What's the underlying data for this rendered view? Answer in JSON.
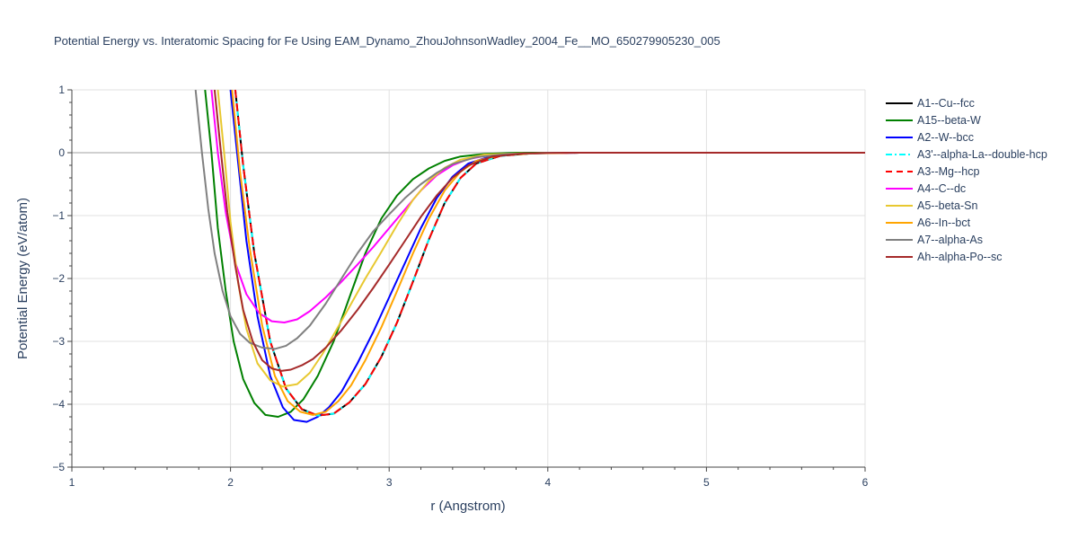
{
  "chart_data": {
    "type": "line",
    "title": "Potential Energy vs. Interatomic Spacing for Fe Using EAM_Dynamo_ZhouJohnsonWadley_2004_Fe__MO_650279905230_005",
    "xlabel": "r (Angstrom)",
    "ylabel": "Potential Energy (eV/atom)",
    "xlim": [
      1,
      6
    ],
    "ylim": [
      -5,
      1
    ],
    "xticks": [
      1,
      2,
      3,
      4,
      5,
      6
    ],
    "yticks": [
      1,
      0,
      -1,
      -2,
      -3,
      -4,
      -5
    ],
    "ytick_labels": [
      "1",
      "0",
      "−1",
      "−2",
      "−3",
      "−4",
      "−5"
    ],
    "grid": true,
    "legend_position": "right",
    "series": [
      {
        "name": "A1--Cu--fcc",
        "color": "#000000",
        "dash": "solid",
        "x": [
          2.03,
          2.08,
          2.15,
          2.25,
          2.35,
          2.45,
          2.55,
          2.65,
          2.75,
          2.85,
          2.95,
          3.05,
          3.15,
          3.25,
          3.35,
          3.45,
          3.55,
          3.7,
          3.9,
          4.2,
          5.0,
          6.0
        ],
        "y": [
          1.0,
          -0.2,
          -1.6,
          -3.0,
          -3.75,
          -4.08,
          -4.18,
          -4.15,
          -3.97,
          -3.68,
          -3.25,
          -2.7,
          -2.05,
          -1.38,
          -0.8,
          -0.4,
          -0.17,
          -0.05,
          -0.01,
          0,
          0,
          0
        ]
      },
      {
        "name": "A15--beta-W",
        "color": "#008000",
        "dash": "solid",
        "x": [
          1.84,
          1.88,
          1.92,
          1.97,
          2.02,
          2.08,
          2.15,
          2.22,
          2.3,
          2.38,
          2.46,
          2.55,
          2.65,
          2.75,
          2.85,
          2.95,
          3.05,
          3.15,
          3.25,
          3.35,
          3.45,
          3.6,
          3.8,
          4.1,
          5.0,
          6.0
        ],
        "y": [
          1.0,
          0.0,
          -1.2,
          -2.2,
          -3.0,
          -3.6,
          -3.98,
          -4.17,
          -4.2,
          -4.12,
          -3.92,
          -3.55,
          -3.0,
          -2.3,
          -1.6,
          -1.05,
          -0.68,
          -0.42,
          -0.25,
          -0.13,
          -0.06,
          -0.02,
          0,
          0,
          0,
          0
        ]
      },
      {
        "name": "A2--W--bcc",
        "color": "#0000ff",
        "dash": "solid",
        "x": [
          2.0,
          2.05,
          2.1,
          2.17,
          2.25,
          2.33,
          2.4,
          2.48,
          2.55,
          2.62,
          2.7,
          2.8,
          2.9,
          3.0,
          3.1,
          3.2,
          3.3,
          3.4,
          3.5,
          3.65,
          3.85,
          4.2,
          5.0,
          6.0
        ],
        "y": [
          1.0,
          -0.2,
          -1.4,
          -2.6,
          -3.55,
          -4.05,
          -4.25,
          -4.28,
          -4.2,
          -4.05,
          -3.8,
          -3.35,
          -2.85,
          -2.3,
          -1.75,
          -1.2,
          -0.72,
          -0.38,
          -0.17,
          -0.05,
          -0.01,
          0,
          0,
          0
        ]
      },
      {
        "name": "A3'--alpha-La--double-hcp",
        "color": "#00ffff",
        "dash": "dashdot",
        "x": [
          2.03,
          2.08,
          2.15,
          2.25,
          2.35,
          2.45,
          2.55,
          2.65,
          2.75,
          2.85,
          2.95,
          3.05,
          3.15,
          3.25,
          3.35,
          3.45,
          3.55,
          3.7,
          3.9,
          4.2,
          5.0,
          6.0
        ],
        "y": [
          1.0,
          -0.2,
          -1.6,
          -3.0,
          -3.75,
          -4.08,
          -4.18,
          -4.15,
          -3.97,
          -3.68,
          -3.25,
          -2.7,
          -2.05,
          -1.38,
          -0.8,
          -0.4,
          -0.17,
          -0.05,
          -0.01,
          0,
          0,
          0
        ]
      },
      {
        "name": "A3--Mg--hcp",
        "color": "#ff0000",
        "dash": "dash",
        "x": [
          2.03,
          2.08,
          2.15,
          2.25,
          2.35,
          2.45,
          2.55,
          2.65,
          2.75,
          2.85,
          2.95,
          3.05,
          3.15,
          3.25,
          3.35,
          3.45,
          3.55,
          3.7,
          3.9,
          4.2,
          5.0,
          6.0
        ],
        "y": [
          1.0,
          -0.2,
          -1.6,
          -3.0,
          -3.75,
          -4.08,
          -4.18,
          -4.15,
          -3.97,
          -3.68,
          -3.25,
          -2.7,
          -2.05,
          -1.38,
          -0.8,
          -0.4,
          -0.17,
          -0.05,
          -0.01,
          0,
          0,
          0
        ]
      },
      {
        "name": "A4--C--dc",
        "color": "#ff00ff",
        "dash": "solid",
        "x": [
          1.88,
          1.92,
          1.97,
          2.03,
          2.1,
          2.18,
          2.26,
          2.34,
          2.42,
          2.5,
          2.6,
          2.7,
          2.8,
          2.9,
          3.0,
          3.1,
          3.2,
          3.3,
          3.4,
          3.5,
          3.65,
          3.85,
          4.2,
          5.0,
          6.0
        ],
        "y": [
          1.0,
          0.0,
          -0.95,
          -1.75,
          -2.25,
          -2.55,
          -2.68,
          -2.7,
          -2.65,
          -2.52,
          -2.3,
          -2.05,
          -1.78,
          -1.5,
          -1.2,
          -0.9,
          -0.6,
          -0.36,
          -0.2,
          -0.1,
          -0.03,
          -0.01,
          0,
          0,
          0
        ]
      },
      {
        "name": "A5--beta-Sn",
        "color": "#e8c830",
        "dash": "solid",
        "x": [
          1.92,
          1.96,
          2.0,
          2.05,
          2.1,
          2.17,
          2.25,
          2.33,
          2.42,
          2.5,
          2.58,
          2.66,
          2.75,
          2.85,
          2.95,
          3.05,
          3.15,
          3.25,
          3.35,
          3.45,
          3.6,
          3.8,
          4.1,
          5.0,
          6.0
        ],
        "y": [
          1.0,
          0.0,
          -1.1,
          -2.1,
          -2.8,
          -3.35,
          -3.62,
          -3.72,
          -3.68,
          -3.5,
          -3.2,
          -2.85,
          -2.45,
          -2.0,
          -1.58,
          -1.15,
          -0.75,
          -0.45,
          -0.24,
          -0.11,
          -0.03,
          -0.01,
          0,
          0,
          0
        ]
      },
      {
        "name": "A6--In--bct",
        "color": "#ffa500",
        "dash": "solid",
        "x": [
          2.01,
          2.06,
          2.12,
          2.2,
          2.28,
          2.36,
          2.44,
          2.52,
          2.6,
          2.68,
          2.76,
          2.85,
          2.95,
          3.05,
          3.15,
          3.25,
          3.35,
          3.45,
          3.55,
          3.7,
          3.9,
          4.2,
          5.0,
          6.0
        ],
        "y": [
          1.0,
          -0.3,
          -1.5,
          -2.75,
          -3.55,
          -3.95,
          -4.12,
          -4.17,
          -4.12,
          -3.95,
          -3.7,
          -3.3,
          -2.78,
          -2.2,
          -1.6,
          -1.05,
          -0.6,
          -0.3,
          -0.13,
          -0.04,
          -0.01,
          0,
          0,
          0
        ]
      },
      {
        "name": "A7--alpha-As",
        "color": "#808080",
        "dash": "solid",
        "x": [
          1.78,
          1.82,
          1.86,
          1.9,
          1.95,
          2.0,
          2.06,
          2.12,
          2.2,
          2.28,
          2.35,
          2.42,
          2.5,
          2.6,
          2.7,
          2.8,
          2.9,
          3.0,
          3.1,
          3.2,
          3.3,
          3.4,
          3.55,
          3.75,
          4.0,
          5.0,
          6.0
        ],
        "y": [
          1.0,
          0.0,
          -0.9,
          -1.6,
          -2.2,
          -2.6,
          -2.88,
          -3.02,
          -3.1,
          -3.12,
          -3.07,
          -2.95,
          -2.75,
          -2.4,
          -2.0,
          -1.6,
          -1.25,
          -0.98,
          -0.72,
          -0.5,
          -0.32,
          -0.18,
          -0.07,
          -0.02,
          0,
          0,
          0
        ]
      },
      {
        "name": "Ah--alpha-Po--sc",
        "color": "#a52a2a",
        "dash": "solid",
        "x": [
          1.9,
          1.94,
          1.98,
          2.03,
          2.08,
          2.14,
          2.2,
          2.26,
          2.32,
          2.38,
          2.45,
          2.52,
          2.6,
          2.7,
          2.8,
          2.9,
          3.0,
          3.1,
          3.2,
          3.3,
          3.4,
          3.5,
          3.65,
          3.85,
          4.1,
          5.0,
          6.0
        ],
        "y": [
          1.0,
          0.0,
          -0.95,
          -1.8,
          -2.5,
          -3.0,
          -3.3,
          -3.43,
          -3.47,
          -3.45,
          -3.38,
          -3.28,
          -3.1,
          -2.82,
          -2.5,
          -2.15,
          -1.78,
          -1.4,
          -1.02,
          -0.68,
          -0.4,
          -0.2,
          -0.06,
          -0.01,
          0,
          0,
          0
        ]
      }
    ]
  }
}
